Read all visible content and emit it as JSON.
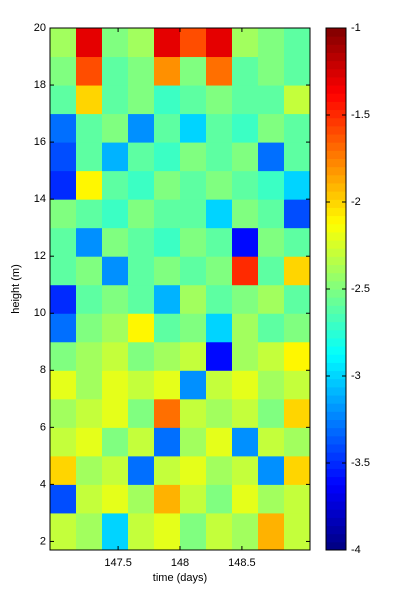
{
  "chart_data": {
    "type": "heatmap",
    "xlabel": "time (days)",
    "ylabel": "height (m)",
    "colormap": "jet",
    "x_edges": [
      146.95,
      147.16,
      147.37,
      147.58,
      147.79,
      148.0,
      148.21,
      148.42,
      148.63,
      148.84,
      149.05
    ],
    "y_edges": [
      1.7,
      3,
      4,
      5,
      6,
      7,
      8,
      9,
      10,
      11,
      12,
      13,
      14,
      15,
      16,
      17,
      18,
      19,
      20
    ],
    "z": [
      [
        -2.3,
        -2.4,
        -3.0,
        -2.3,
        -2.2,
        -2.5,
        -2.3,
        -2.4,
        -1.9,
        -2.3
      ],
      [
        -3.4,
        -2.3,
        -2.2,
        -2.4,
        -1.9,
        -2.3,
        -2.5,
        -2.2,
        -2.4,
        -2.3
      ],
      [
        -2.0,
        -2.4,
        -2.3,
        -3.3,
        -2.3,
        -2.2,
        -2.4,
        -2.3,
        -3.2,
        -2.0
      ],
      [
        -2.3,
        -2.2,
        -2.5,
        -2.3,
        -3.3,
        -2.4,
        -2.2,
        -3.2,
        -2.3,
        -2.4
      ],
      [
        -2.4,
        -2.3,
        -2.2,
        -2.5,
        -1.7,
        -2.3,
        -2.4,
        -2.3,
        -2.5,
        -2.0
      ],
      [
        -2.2,
        -2.4,
        -2.2,
        -2.3,
        -2.2,
        -3.2,
        -2.3,
        -2.2,
        -2.4,
        -2.3
      ],
      [
        -2.5,
        -2.4,
        -2.3,
        -2.5,
        -2.4,
        -2.3,
        -3.6,
        -2.4,
        -2.3,
        -2.1
      ],
      [
        -3.3,
        -2.5,
        -2.4,
        -2.1,
        -2.6,
        -2.5,
        -3.0,
        -2.4,
        -2.6,
        -2.5
      ],
      [
        -3.5,
        -2.6,
        -2.5,
        -2.6,
        -3.1,
        -2.4,
        -2.6,
        -2.5,
        -2.4,
        -2.6
      ],
      [
        -2.6,
        -2.5,
        -3.2,
        -2.6,
        -2.5,
        -2.6,
        -2.5,
        -1.5,
        -2.6,
        -2.0
      ],
      [
        -2.6,
        -3.2,
        -2.5,
        -2.6,
        -2.7,
        -2.5,
        -2.6,
        -3.6,
        -2.5,
        -2.6
      ],
      [
        -2.5,
        -2.6,
        -2.7,
        -2.5,
        -2.6,
        -2.6,
        -3.0,
        -2.5,
        -2.6,
        -3.4
      ],
      [
        -3.5,
        -2.1,
        -2.6,
        -2.7,
        -2.5,
        -2.6,
        -2.5,
        -2.6,
        -2.7,
        -3.0
      ],
      [
        -3.4,
        -2.6,
        -3.1,
        -2.6,
        -2.7,
        -2.5,
        -2.6,
        -2.5,
        -3.3,
        -2.6
      ],
      [
        -3.3,
        -2.6,
        -2.5,
        -3.2,
        -2.6,
        -3.0,
        -2.6,
        -2.7,
        -2.5,
        -2.6
      ],
      [
        -2.6,
        -2.0,
        -2.6,
        -2.5,
        -2.7,
        -2.6,
        -2.5,
        -2.6,
        -2.6,
        -2.3
      ],
      [
        -2.5,
        -1.6,
        -2.6,
        -2.5,
        -1.8,
        -2.5,
        -1.7,
        -2.6,
        -2.5,
        -2.6
      ],
      [
        -2.4,
        -1.3,
        -2.5,
        -2.4,
        -1.3,
        -1.6,
        -1.3,
        -2.4,
        -2.5,
        -2.6
      ]
    ],
    "xlim": [
      146.95,
      149.05
    ],
    "xticks": [
      147.5,
      148,
      148.5
    ],
    "ylim": [
      1.7,
      20
    ],
    "yticks": [
      2,
      4,
      6,
      8,
      10,
      12,
      14,
      16,
      18,
      20
    ],
    "clim": [
      -4,
      -1
    ],
    "cticks": [
      -4,
      -3.5,
      -3,
      -2.5,
      -2,
      -1.5,
      -1
    ]
  }
}
